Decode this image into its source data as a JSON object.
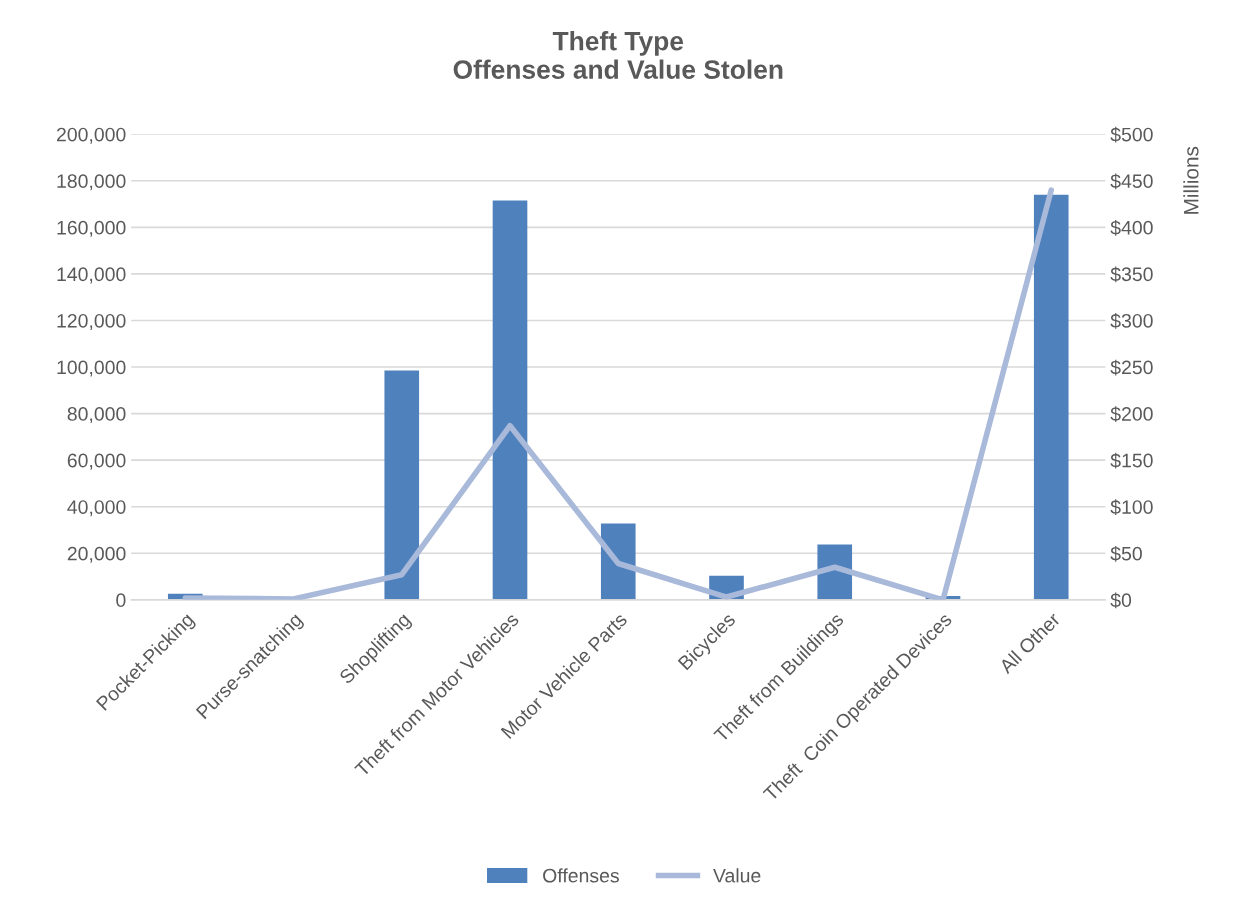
{
  "chart_data": {
    "type": "bar",
    "title": "Theft Type\nOffenses and Value Stolen",
    "y2label": "Millions",
    "categories": [
      "Pocket-Picking",
      "Purse-snatching",
      "Shoplifting",
      "Theft from Motor Vehicles",
      "Motor Vehicle Parts",
      "Bicycles",
      "Theft from Buildings",
      "Theft  Coin Operated Devices",
      "All Other"
    ],
    "series": [
      {
        "name": "Offenses",
        "color": "#4f81bd",
        "values": [
          2600,
          null,
          98500,
          171500,
          32800,
          10400,
          23800,
          1700,
          174000
        ]
      },
      {
        "name": "Value",
        "type": "line",
        "axis": "y2",
        "color": "#a9b9da",
        "values": [
          2,
          1,
          27,
          187,
          39,
          3,
          35,
          0,
          440
        ]
      }
    ],
    "ylim": [
      0,
      200000
    ],
    "yticks": [
      {
        "value": 0,
        "label": "0"
      },
      {
        "value": 20000,
        "label": "20,000"
      },
      {
        "value": 40000,
        "label": "40,000"
      },
      {
        "value": 60000,
        "label": "60,000"
      },
      {
        "value": 80000,
        "label": "80,000"
      },
      {
        "value": 100000,
        "label": "100,000"
      },
      {
        "value": 120000,
        "label": "120,000"
      },
      {
        "value": 140000,
        "label": "140,000"
      },
      {
        "value": 160000,
        "label": "160,000"
      },
      {
        "value": 180000,
        "label": "180,000"
      },
      {
        "value": 200000,
        "label": "200,000"
      }
    ],
    "y2lim": [
      0,
      500
    ],
    "y2ticks": [
      {
        "value": 0,
        "label": "$0"
      },
      {
        "value": 50,
        "label": "$50"
      },
      {
        "value": 100,
        "label": "$100"
      },
      {
        "value": 150,
        "label": "$150"
      },
      {
        "value": 200,
        "label": "$200"
      },
      {
        "value": 250,
        "label": "$250"
      },
      {
        "value": 300,
        "label": "$300"
      },
      {
        "value": 350,
        "label": "$350"
      },
      {
        "value": 400,
        "label": "$400"
      },
      {
        "value": 450,
        "label": "$450"
      },
      {
        "value": 500,
        "label": "$500"
      }
    ],
    "grid": "y",
    "legend": "bottom",
    "marker": "none"
  }
}
